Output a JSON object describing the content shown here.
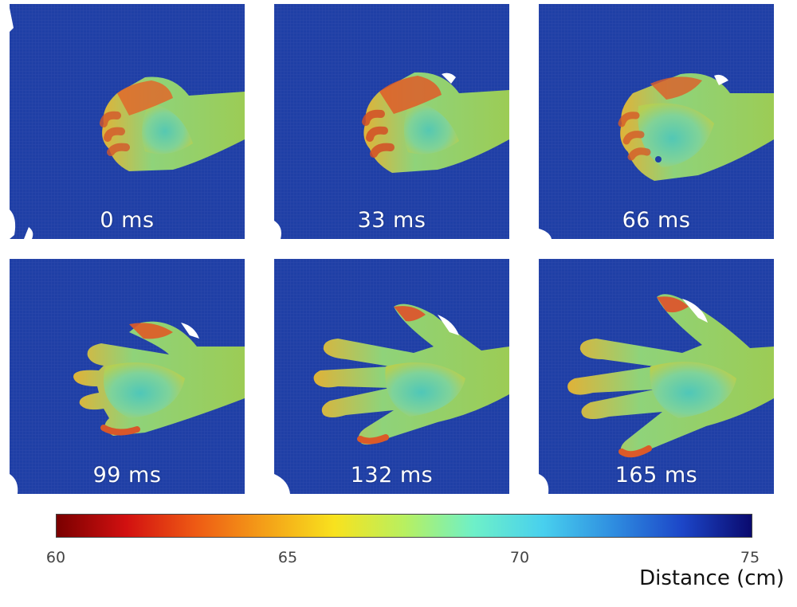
{
  "frames": [
    {
      "label": "0 ms"
    },
    {
      "label": "33 ms"
    },
    {
      "label": "66 ms"
    },
    {
      "label": "99 ms"
    },
    {
      "label": "132 ms"
    },
    {
      "label": "165 ms"
    }
  ],
  "colorbar": {
    "ticks": [
      "60",
      "65",
      "70",
      "75"
    ],
    "title": "Distance (cm)",
    "range": [
      60,
      75
    ],
    "colors": [
      "#7a0000",
      "#d21010",
      "#f4a018",
      "#f8e21e",
      "#6ef0c8",
      "#2f8ee0",
      "#0a0a6e"
    ]
  },
  "background_color": "#1f3fa6"
}
